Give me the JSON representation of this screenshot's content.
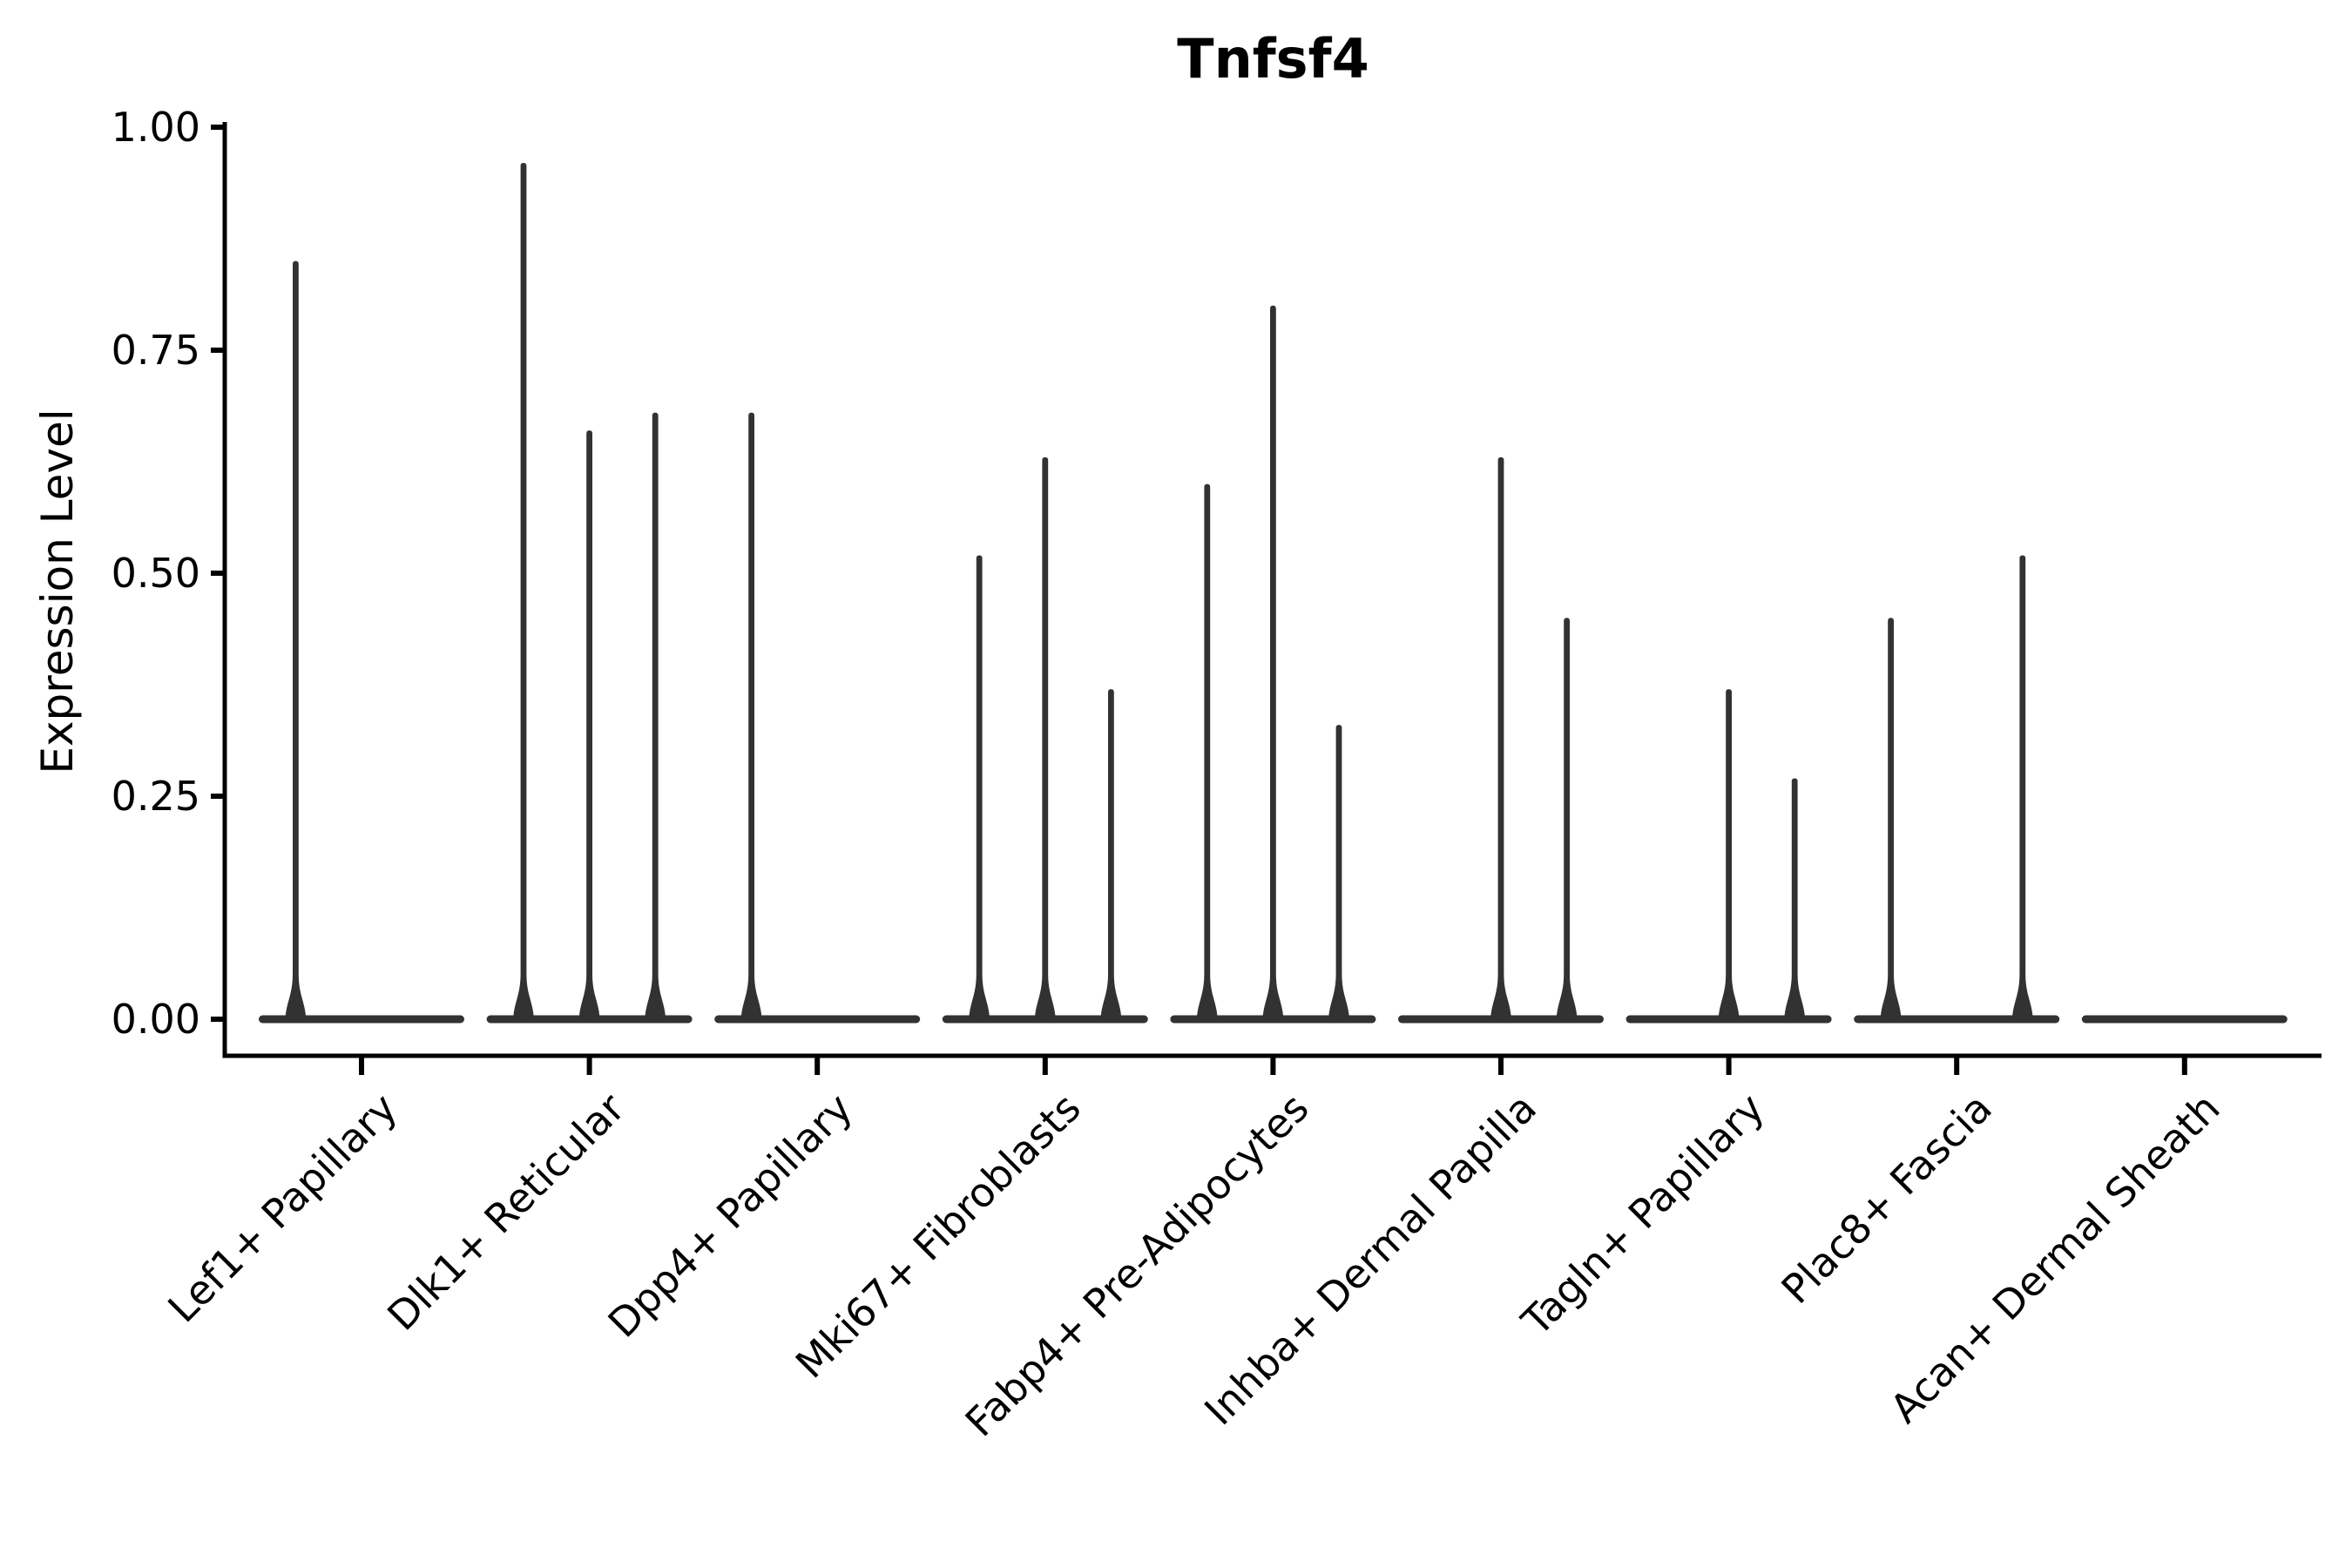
{
  "chart_data": {
    "type": "violin",
    "title": "Tnfsf4",
    "ylabel": "Expression Level",
    "xlabel": "",
    "ylim": [
      0.0,
      1.0
    ],
    "grid": false,
    "legend_position": "none",
    "yticks": [
      {
        "value": 0.0,
        "label": "0.00"
      },
      {
        "value": 0.25,
        "label": "0.25"
      },
      {
        "value": 0.5,
        "label": "0.50"
      },
      {
        "value": 0.75,
        "label": "0.75"
      },
      {
        "value": 1.0,
        "label": "1.00"
      }
    ],
    "categories": [
      "Lef1+ Papillary",
      "Dlk1+ Reticular",
      "Dpp4+ Papillary",
      "Mki67+ Fibroblasts",
      "Fabp4+ Pre-Adipocytes",
      "Inhba+ Dermal Papilla",
      "Tagln+ Papillary",
      "Plac8+ Fascia",
      "Acan+ Dermal Sheath"
    ],
    "violins": [
      {
        "category": "Lef1+ Papillary",
        "spikes": [
          {
            "position": "left",
            "max": 0.85
          }
        ]
      },
      {
        "category": "Dlk1+ Reticular",
        "spikes": [
          {
            "position": "left",
            "max": 0.96
          },
          {
            "position": "center",
            "max": 0.66
          },
          {
            "position": "right",
            "max": 0.68
          }
        ]
      },
      {
        "category": "Dpp4+ Papillary",
        "spikes": [
          {
            "position": "left",
            "max": 0.68
          }
        ]
      },
      {
        "category": "Mki67+ Fibroblasts",
        "spikes": [
          {
            "position": "left",
            "max": 0.52
          },
          {
            "position": "center",
            "max": 0.63
          },
          {
            "position": "right",
            "max": 0.37
          }
        ]
      },
      {
        "category": "Fabp4+ Pre-Adipocytes",
        "spikes": [
          {
            "position": "left",
            "max": 0.6
          },
          {
            "position": "center",
            "max": 0.8
          },
          {
            "position": "right",
            "max": 0.33
          }
        ]
      },
      {
        "category": "Inhba+ Dermal Papilla",
        "spikes": [
          {
            "position": "center",
            "max": 0.63
          },
          {
            "position": "right",
            "max": 0.45
          }
        ]
      },
      {
        "category": "Tagln+ Papillary",
        "spikes": [
          {
            "position": "center",
            "max": 0.37
          },
          {
            "position": "right",
            "max": 0.27
          }
        ]
      },
      {
        "category": "Plac8+ Fascia",
        "spikes": [
          {
            "position": "left",
            "max": 0.45
          },
          {
            "position": "right",
            "max": 0.52
          }
        ]
      },
      {
        "category": "Acan+ Dermal Sheath",
        "spikes": []
      }
    ],
    "colors": {
      "violin": "#323232",
      "axis": "#000000",
      "text": "#000000",
      "background": "#ffffff"
    }
  }
}
